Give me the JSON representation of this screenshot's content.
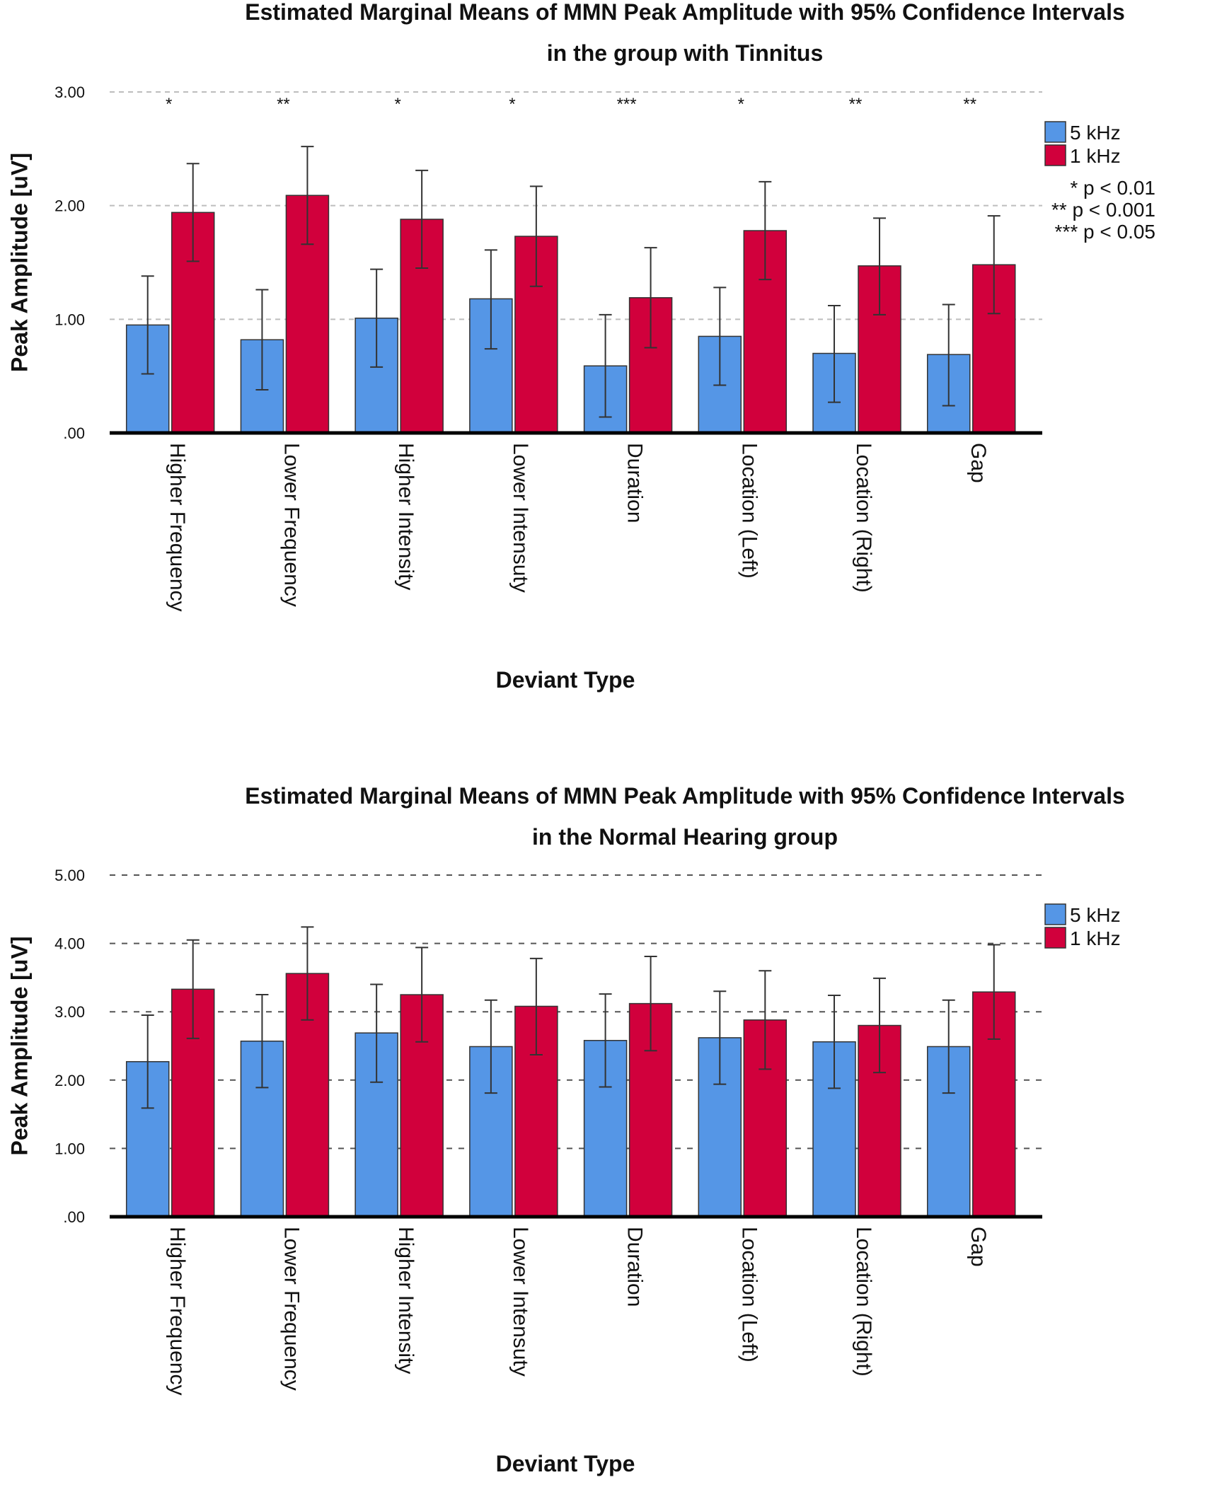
{
  "chart_data": [
    {
      "type": "bar",
      "title": "Estimated Marginal Means of MMN Peak Amplitude with 95% Confidence Intervals",
      "subtitle": "in the group with Tinnitus",
      "xlabel": "Deviant Type",
      "ylabel": "Peak Amplitude [uV]",
      "ylim": [
        0,
        3
      ],
      "yticks": [
        0,
        1,
        2,
        3
      ],
      "ytick_labels": [
        ".00",
        "1.00",
        "2.00",
        "3.00"
      ],
      "grid": "horizontal dashed",
      "legend_position": "top-right",
      "categories": [
        "Higher Frequency",
        "Lower Frequency",
        "Higher Intensity",
        "Lower Intensuty",
        "Duration",
        "Location (Left)",
        "Location (Right)",
        "Gap"
      ],
      "series": [
        {
          "name": "5 kHz",
          "color": "#5596E6",
          "values": [
            0.95,
            0.82,
            1.01,
            1.18,
            0.59,
            0.85,
            0.7,
            0.69
          ],
          "ci_lower": [
            0.52,
            0.38,
            0.58,
            0.74,
            0.14,
            0.42,
            0.27,
            0.24
          ],
          "ci_upper": [
            1.38,
            1.26,
            1.44,
            1.61,
            1.04,
            1.28,
            1.12,
            1.13
          ]
        },
        {
          "name": "1 kHz",
          "color": "#D1003C",
          "values": [
            1.94,
            2.09,
            1.88,
            1.73,
            1.19,
            1.78,
            1.47,
            1.48
          ],
          "ci_lower": [
            1.51,
            1.66,
            1.45,
            1.29,
            0.75,
            1.35,
            1.04,
            1.05
          ],
          "ci_upper": [
            2.37,
            2.52,
            2.31,
            2.17,
            1.63,
            2.21,
            1.89,
            1.91
          ]
        }
      ],
      "significance": [
        "*",
        "**",
        "*",
        "*",
        "***",
        "*",
        "**",
        "**"
      ],
      "legend_notes": [
        "* p < 0.01",
        "** p < 0.001",
        "*** p < 0.05"
      ]
    },
    {
      "type": "bar",
      "title": "Estimated Marginal Means of MMN Peak Amplitude with 95% Confidence Intervals",
      "subtitle": "in the Normal Hearing group",
      "xlabel": "Deviant Type",
      "ylabel": "Peak Amplitude [uV]",
      "ylim": [
        0,
        5
      ],
      "yticks": [
        0,
        1,
        2,
        3,
        4,
        5
      ],
      "ytick_labels": [
        ".00",
        "1.00",
        "2.00",
        "3.00",
        "4.00",
        "5.00"
      ],
      "grid": "horizontal dashed",
      "legend_position": "top-right",
      "categories": [
        "Higher Frequency",
        "Lower Frequency",
        "Higher Intensity",
        "Lower Intensuty",
        "Duration",
        "Location (Left)",
        "Location (Right)",
        "Gap"
      ],
      "series": [
        {
          "name": "5 kHz",
          "color": "#5596E6",
          "values": [
            2.27,
            2.57,
            2.69,
            2.49,
            2.58,
            2.62,
            2.56,
            2.49
          ],
          "ci_lower": [
            1.59,
            1.89,
            1.97,
            1.81,
            1.9,
            1.94,
            1.88,
            1.81
          ],
          "ci_upper": [
            2.95,
            3.25,
            3.4,
            3.17,
            3.26,
            3.3,
            3.24,
            3.17
          ]
        },
        {
          "name": "1 kHz",
          "color": "#D1003C",
          "values": [
            3.33,
            3.56,
            3.25,
            3.08,
            3.12,
            2.88,
            2.8,
            3.29
          ],
          "ci_lower": [
            2.61,
            2.88,
            2.56,
            2.37,
            2.43,
            2.16,
            2.11,
            2.6
          ],
          "ci_upper": [
            4.05,
            4.24,
            3.94,
            3.78,
            3.81,
            3.6,
            3.49,
            3.98
          ]
        }
      ],
      "significance": [],
      "legend_notes": []
    }
  ]
}
